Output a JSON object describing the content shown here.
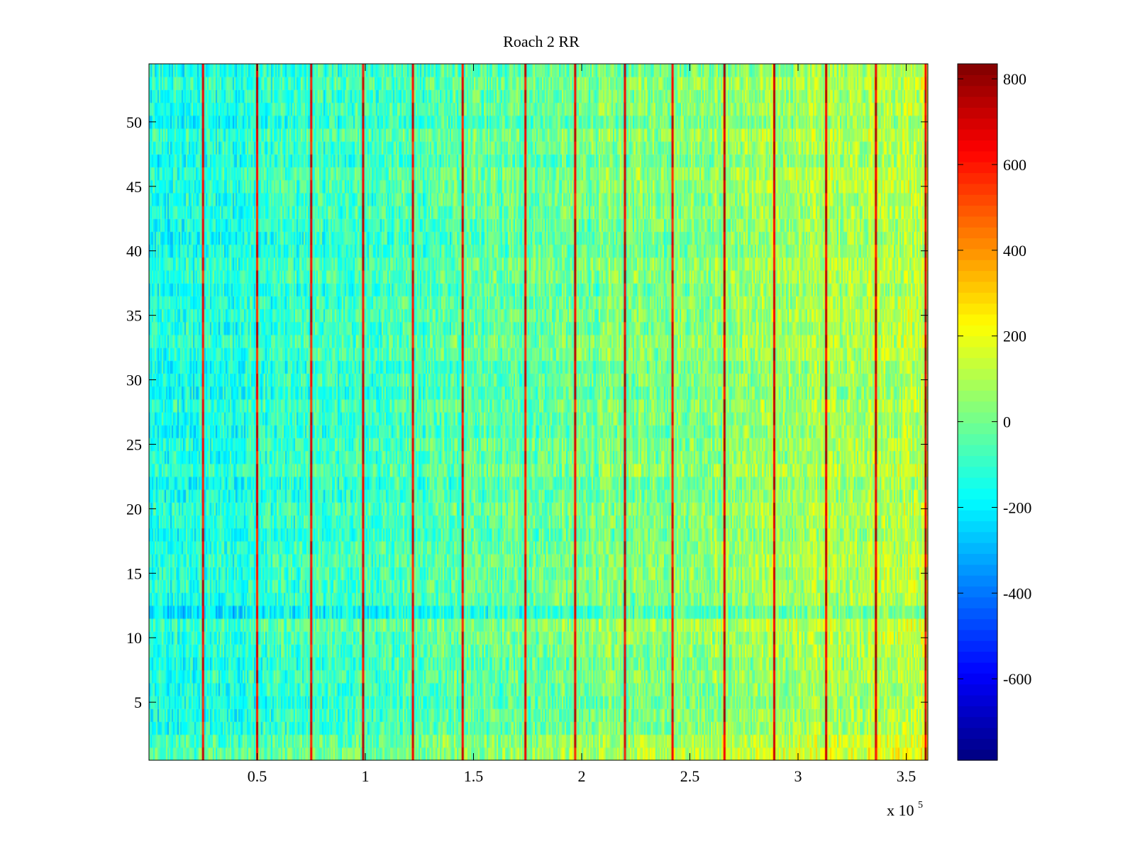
{
  "chart_data": {
    "type": "heatmap",
    "title": "Roach 2 RR",
    "xlabel": "",
    "ylabel": "",
    "x_multiplier_label": {
      "base": "x 10",
      "exponent": "5"
    },
    "xlim": [
      0,
      3.6
    ],
    "ylim": [
      0.5,
      54.5
    ],
    "rows": 54,
    "x_ticks": [
      {
        "value": 0.5,
        "label": "0.5"
      },
      {
        "value": 1,
        "label": "1"
      },
      {
        "value": 1.5,
        "label": "1.5"
      },
      {
        "value": 2,
        "label": "2"
      },
      {
        "value": 2.5,
        "label": "2.5"
      },
      {
        "value": 3,
        "label": "3"
      },
      {
        "value": 3.5,
        "label": "3.5"
      }
    ],
    "y_ticks": [
      {
        "value": 5,
        "label": "5"
      },
      {
        "value": 10,
        "label": "10"
      },
      {
        "value": 15,
        "label": "15"
      },
      {
        "value": 20,
        "label": "20"
      },
      {
        "value": 25,
        "label": "25"
      },
      {
        "value": 30,
        "label": "30"
      },
      {
        "value": 35,
        "label": "35"
      },
      {
        "value": 40,
        "label": "40"
      },
      {
        "value": 45,
        "label": "45"
      },
      {
        "value": 50,
        "label": "50"
      }
    ],
    "colorbar": {
      "colormap": "jet",
      "range": [
        -790,
        835
      ],
      "ticks": [
        {
          "value": 800,
          "label": "800"
        },
        {
          "value": 600,
          "label": "600"
        },
        {
          "value": 400,
          "label": "400"
        },
        {
          "value": 200,
          "label": "200"
        },
        {
          "value": 0,
          "label": "0"
        },
        {
          "value": -200,
          "label": "-200"
        },
        {
          "value": -400,
          "label": "-400"
        },
        {
          "value": -600,
          "label": "-600"
        }
      ]
    },
    "value_trend": {
      "x": [
        0,
        3.6
      ],
      "mean_value": [
        -150,
        120
      ]
    },
    "vertical_streaks": [
      {
        "x": 0.25,
        "value": 750
      },
      {
        "x": 0.5,
        "value": 750
      },
      {
        "x": 0.75,
        "value": 750
      },
      {
        "x": 0.99,
        "value": 800
      },
      {
        "x": 1.22,
        "value": 750
      },
      {
        "x": 1.45,
        "value": 750
      },
      {
        "x": 1.74,
        "value": 750
      },
      {
        "x": 1.97,
        "value": 780
      },
      {
        "x": 2.2,
        "value": 800
      },
      {
        "x": 2.42,
        "value": 750
      },
      {
        "x": 2.66,
        "value": 800
      },
      {
        "x": 2.89,
        "value": 780
      },
      {
        "x": 3.13,
        "value": 780
      },
      {
        "x": 3.36,
        "value": 800
      },
      {
        "x": 3.59,
        "value": 820
      }
    ],
    "row_offsets": [
      {
        "row": 1,
        "value": 60
      },
      {
        "row": 2,
        "value": 40
      },
      {
        "row": 11,
        "value": 35
      },
      {
        "row": 12,
        "value": -60
      },
      {
        "row": 32,
        "value": 30
      }
    ],
    "grid": false,
    "legend": "colorbar-right"
  }
}
